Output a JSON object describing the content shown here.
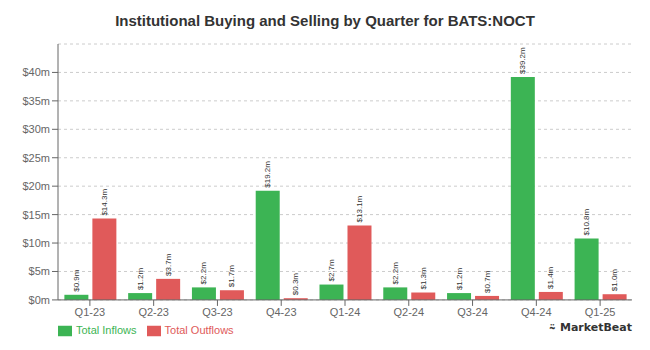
{
  "chart_data": {
    "type": "bar",
    "title": "Institutional Buying and Selling by Quarter for BATS:NOCT",
    "categories": [
      "Q1-23",
      "Q2-23",
      "Q3-23",
      "Q4-23",
      "Q1-24",
      "Q2-24",
      "Q3-24",
      "Q4-24",
      "Q1-25"
    ],
    "series": [
      {
        "name": "Total Inflows",
        "color": "#3cb454",
        "values": [
          0.9,
          1.2,
          2.2,
          19.2,
          2.7,
          2.2,
          1.2,
          39.2,
          10.8
        ],
        "value_labels": [
          "$0.9m",
          "$1.2m",
          "$2.2m",
          "$19.2m",
          "$2.7m",
          "$2.2m",
          "$1.2m",
          "$39.2m",
          "$10.8m"
        ]
      },
      {
        "name": "Total Outflows",
        "color": "#e05a5a",
        "values": [
          14.3,
          3.7,
          1.7,
          0.3,
          13.1,
          1.3,
          0.7,
          1.4,
          1.0
        ],
        "value_labels": [
          "$14.3m",
          "$3.7m",
          "$1.7m",
          "$0.3m",
          "$13.1m",
          "$1.3m",
          "$0.7m",
          "$1.4m",
          "$1.0m"
        ]
      }
    ],
    "ylim": [
      0,
      45
    ],
    "yticks": [
      {
        "value": 0,
        "label": "$0m"
      },
      {
        "value": 5,
        "label": "$5m"
      },
      {
        "value": 10,
        "label": "$10m"
      },
      {
        "value": 15,
        "label": "$15m"
      },
      {
        "value": 20,
        "label": "$20m"
      },
      {
        "value": 25,
        "label": "$25m"
      },
      {
        "value": 30,
        "label": "$30m"
      },
      {
        "value": 35,
        "label": "$35m"
      },
      {
        "value": 40,
        "label": "$40m"
      }
    ],
    "grid": true,
    "legend": "lower left",
    "data_labels": true,
    "annotations": [
      "⍨",
      "MarketBeat"
    ]
  }
}
